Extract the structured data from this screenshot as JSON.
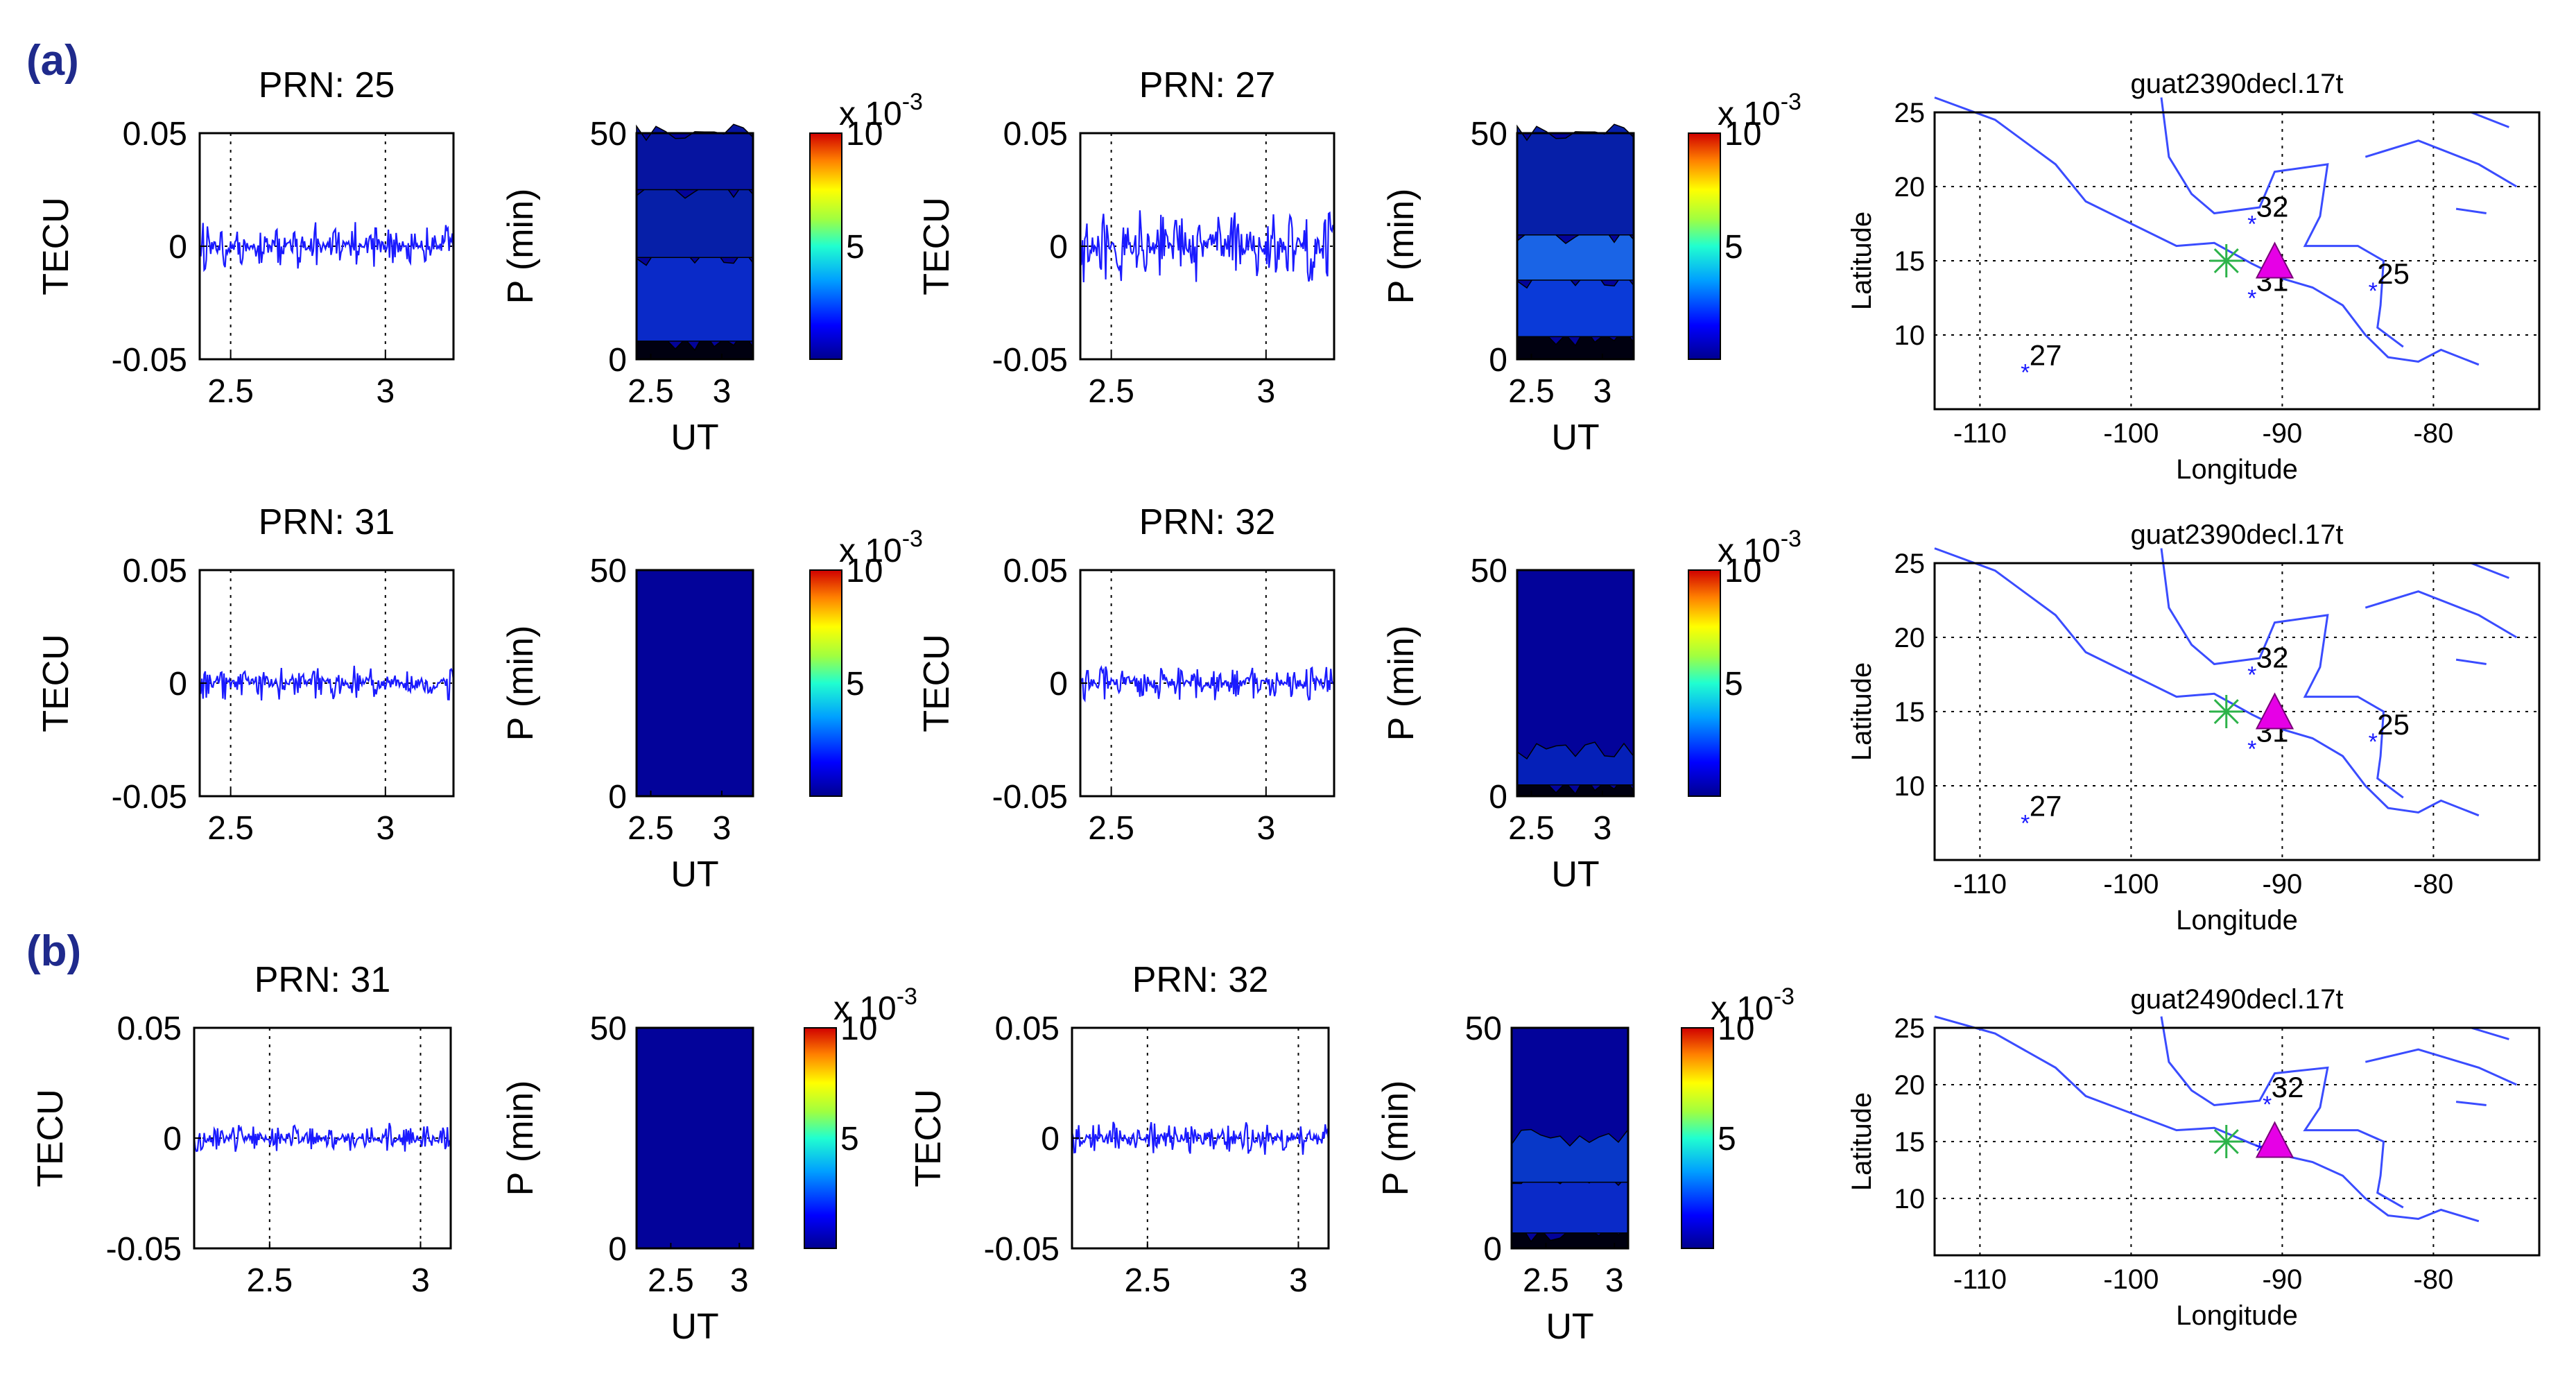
{
  "figure": {
    "panel_labels": {
      "a": "(a)",
      "b": "(b)"
    },
    "colorbar_scale": {
      "base": "x 10",
      "exponent": "-3"
    },
    "colors": {
      "series": "#1a1aff",
      "heat_background": "#03039a",
      "coast": "#3a4cff",
      "marker_star": "#2db34a",
      "marker_triangle": "#e600e6"
    }
  },
  "chart_data": [
    {
      "id": "a1-prn25",
      "type": "line",
      "title": "PRN: 25",
      "xlabel": "",
      "ylabel": "TECU",
      "xlim": [
        2.4,
        3.22
      ],
      "ylim": [
        -0.05,
        0.05
      ],
      "xticks": [
        "2.5",
        "3"
      ],
      "yticks": [
        "0.05",
        "0",
        "-0.05"
      ],
      "amplitude": 0.011,
      "seed": 25
    },
    {
      "id": "a1-spec25",
      "type": "heatmap",
      "xlabel": "UT",
      "ylabel": "P (min)",
      "xlim": [
        2.4,
        3.22
      ],
      "ylim": [
        0,
        50
      ],
      "xticks": [
        "2.5",
        "3"
      ],
      "yticks": [
        "50",
        "0"
      ],
      "colorbar": {
        "range": [
          0,
          10
        ],
        "ticks": [
          "10",
          "5"
        ]
      }
    },
    {
      "id": "a1-prn27",
      "type": "line",
      "title": "PRN: 27",
      "xlabel": "",
      "ylabel": "TECU",
      "xlim": [
        2.4,
        3.22
      ],
      "ylim": [
        -0.05,
        0.05
      ],
      "xticks": [
        "2.5",
        "3"
      ],
      "yticks": [
        "0.05",
        "0",
        "-0.05"
      ],
      "amplitude": 0.017,
      "seed": 27
    },
    {
      "id": "a1-spec27",
      "type": "heatmap",
      "xlabel": "UT",
      "ylabel": "P (min)",
      "xlim": [
        2.4,
        3.22
      ],
      "ylim": [
        0,
        50
      ],
      "xticks": [
        "2.5",
        "3"
      ],
      "yticks": [
        "50",
        "0"
      ],
      "colorbar": {
        "range": [
          0,
          10
        ],
        "ticks": [
          "10",
          "5"
        ]
      }
    },
    {
      "id": "a1-map",
      "type": "scatter",
      "title": "guat2390decl.17t",
      "xlabel": "Longitude",
      "ylabel": "Latitude",
      "xlim": [
        -113,
        -73
      ],
      "ylim": [
        5,
        25
      ],
      "xticks": [
        "-110",
        "-100",
        "-90",
        "-80"
      ],
      "yticks": [
        "25",
        "20",
        "15",
        "10"
      ],
      "points": [
        {
          "lon": -92,
          "lat": 17.5,
          "label": "32"
        },
        {
          "lon": -92,
          "lat": 12.5,
          "label": "31"
        },
        {
          "lon": -84,
          "lat": 13,
          "label": "25"
        },
        {
          "lon": -107,
          "lat": 7.5,
          "label": "27"
        }
      ],
      "epicenter": {
        "lon": -93.7,
        "lat": 15
      },
      "station": {
        "lon": -90.5,
        "lat": 14.6
      }
    },
    {
      "id": "a2-prn31",
      "type": "line",
      "title": "PRN: 31",
      "xlabel": "",
      "ylabel": "TECU",
      "xlim": [
        2.4,
        3.22
      ],
      "ylim": [
        -0.05,
        0.05
      ],
      "xticks": [
        "2.5",
        "3"
      ],
      "yticks": [
        "0.05",
        "0",
        "-0.05"
      ],
      "amplitude": 0.008,
      "seed": 31
    },
    {
      "id": "a2-spec31",
      "type": "heatmap",
      "xlabel": "UT",
      "ylabel": "P (min)",
      "xlim": [
        2.4,
        3.22
      ],
      "ylim": [
        0,
        50
      ],
      "xticks": [
        "2.5",
        "3"
      ],
      "yticks": [
        "50",
        "0"
      ],
      "colorbar": {
        "range": [
          0,
          10
        ],
        "ticks": [
          "10",
          "5"
        ]
      }
    },
    {
      "id": "a2-prn32",
      "type": "line",
      "title": "PRN: 32",
      "xlabel": "",
      "ylabel": "TECU",
      "xlim": [
        2.4,
        3.22
      ],
      "ylim": [
        -0.05,
        0.05
      ],
      "xticks": [
        "2.5",
        "3"
      ],
      "yticks": [
        "0.05",
        "0",
        "-0.05"
      ],
      "amplitude": 0.008,
      "seed": 32
    },
    {
      "id": "a2-spec32",
      "type": "heatmap",
      "xlabel": "UT",
      "ylabel": "P (min)",
      "xlim": [
        2.4,
        3.22
      ],
      "ylim": [
        0,
        50
      ],
      "xticks": [
        "2.5",
        "3"
      ],
      "yticks": [
        "50",
        "0"
      ],
      "colorbar": {
        "range": [
          0,
          10
        ],
        "ticks": [
          "10",
          "5"
        ]
      }
    },
    {
      "id": "a2-map",
      "type": "scatter",
      "title": "guat2390decl.17t",
      "xlabel": "Longitude",
      "ylabel": "Latitude",
      "xlim": [
        -113,
        -73
      ],
      "ylim": [
        5,
        25
      ],
      "xticks": [
        "-110",
        "-100",
        "-90",
        "-80"
      ],
      "yticks": [
        "25",
        "20",
        "15",
        "10"
      ],
      "points": [
        {
          "lon": -92,
          "lat": 17.5,
          "label": "32"
        },
        {
          "lon": -92,
          "lat": 12.5,
          "label": "31"
        },
        {
          "lon": -84,
          "lat": 13,
          "label": "25"
        },
        {
          "lon": -107,
          "lat": 7.5,
          "label": "27"
        }
      ],
      "epicenter": {
        "lon": -93.7,
        "lat": 15
      },
      "station": {
        "lon": -90.5,
        "lat": 14.6
      }
    },
    {
      "id": "b-prn31",
      "type": "line",
      "title": "PRN: 31",
      "xlabel": "",
      "ylabel": "TECU",
      "xlim": [
        2.25,
        3.1
      ],
      "ylim": [
        -0.05,
        0.05
      ],
      "xticks": [
        "2.5",
        "3"
      ],
      "yticks": [
        "0.05",
        "0",
        "-0.05"
      ],
      "amplitude": 0.007,
      "seed": 131
    },
    {
      "id": "b-spec31",
      "type": "heatmap",
      "xlabel": "UT",
      "ylabel": "P (min)",
      "xlim": [
        2.25,
        3.1
      ],
      "ylim": [
        0,
        50
      ],
      "xticks": [
        "2.5",
        "3"
      ],
      "yticks": [
        "50",
        "0"
      ],
      "colorbar": {
        "range": [
          0,
          10
        ],
        "ticks": [
          "10",
          "5"
        ]
      }
    },
    {
      "id": "b-prn32",
      "type": "line",
      "title": "PRN: 32",
      "xlabel": "",
      "ylabel": "TECU",
      "xlim": [
        2.25,
        3.1
      ],
      "ylim": [
        -0.05,
        0.05
      ],
      "xticks": [
        "2.5",
        "3"
      ],
      "yticks": [
        "0.05",
        "0",
        "-0.05"
      ],
      "amplitude": 0.008,
      "seed": 132
    },
    {
      "id": "b-spec32",
      "type": "heatmap",
      "xlabel": "UT",
      "ylabel": "P (min)",
      "xlim": [
        2.25,
        3.1
      ],
      "ylim": [
        0,
        50
      ],
      "xticks": [
        "2.5",
        "3"
      ],
      "yticks": [
        "50",
        "0"
      ],
      "colorbar": {
        "range": [
          0,
          10
        ],
        "ticks": [
          "10",
          "5"
        ]
      }
    },
    {
      "id": "b-map",
      "type": "scatter",
      "title": "guat2490decl.17t",
      "xlabel": "Longitude",
      "ylabel": "Latitude",
      "xlim": [
        -113,
        -73
      ],
      "ylim": [
        5,
        25
      ],
      "xticks": [
        "-110",
        "-100",
        "-90",
        "-80"
      ],
      "yticks": [
        "25",
        "20",
        "15",
        "10"
      ],
      "points": [
        {
          "lon": -91,
          "lat": 18.3,
          "label": "32"
        },
        {
          "lon": -91.5,
          "lat": 14.2,
          "label": ""
        }
      ],
      "epicenter": {
        "lon": -93.7,
        "lat": 15
      },
      "station": {
        "lon": -90.5,
        "lat": 14.6
      }
    }
  ]
}
